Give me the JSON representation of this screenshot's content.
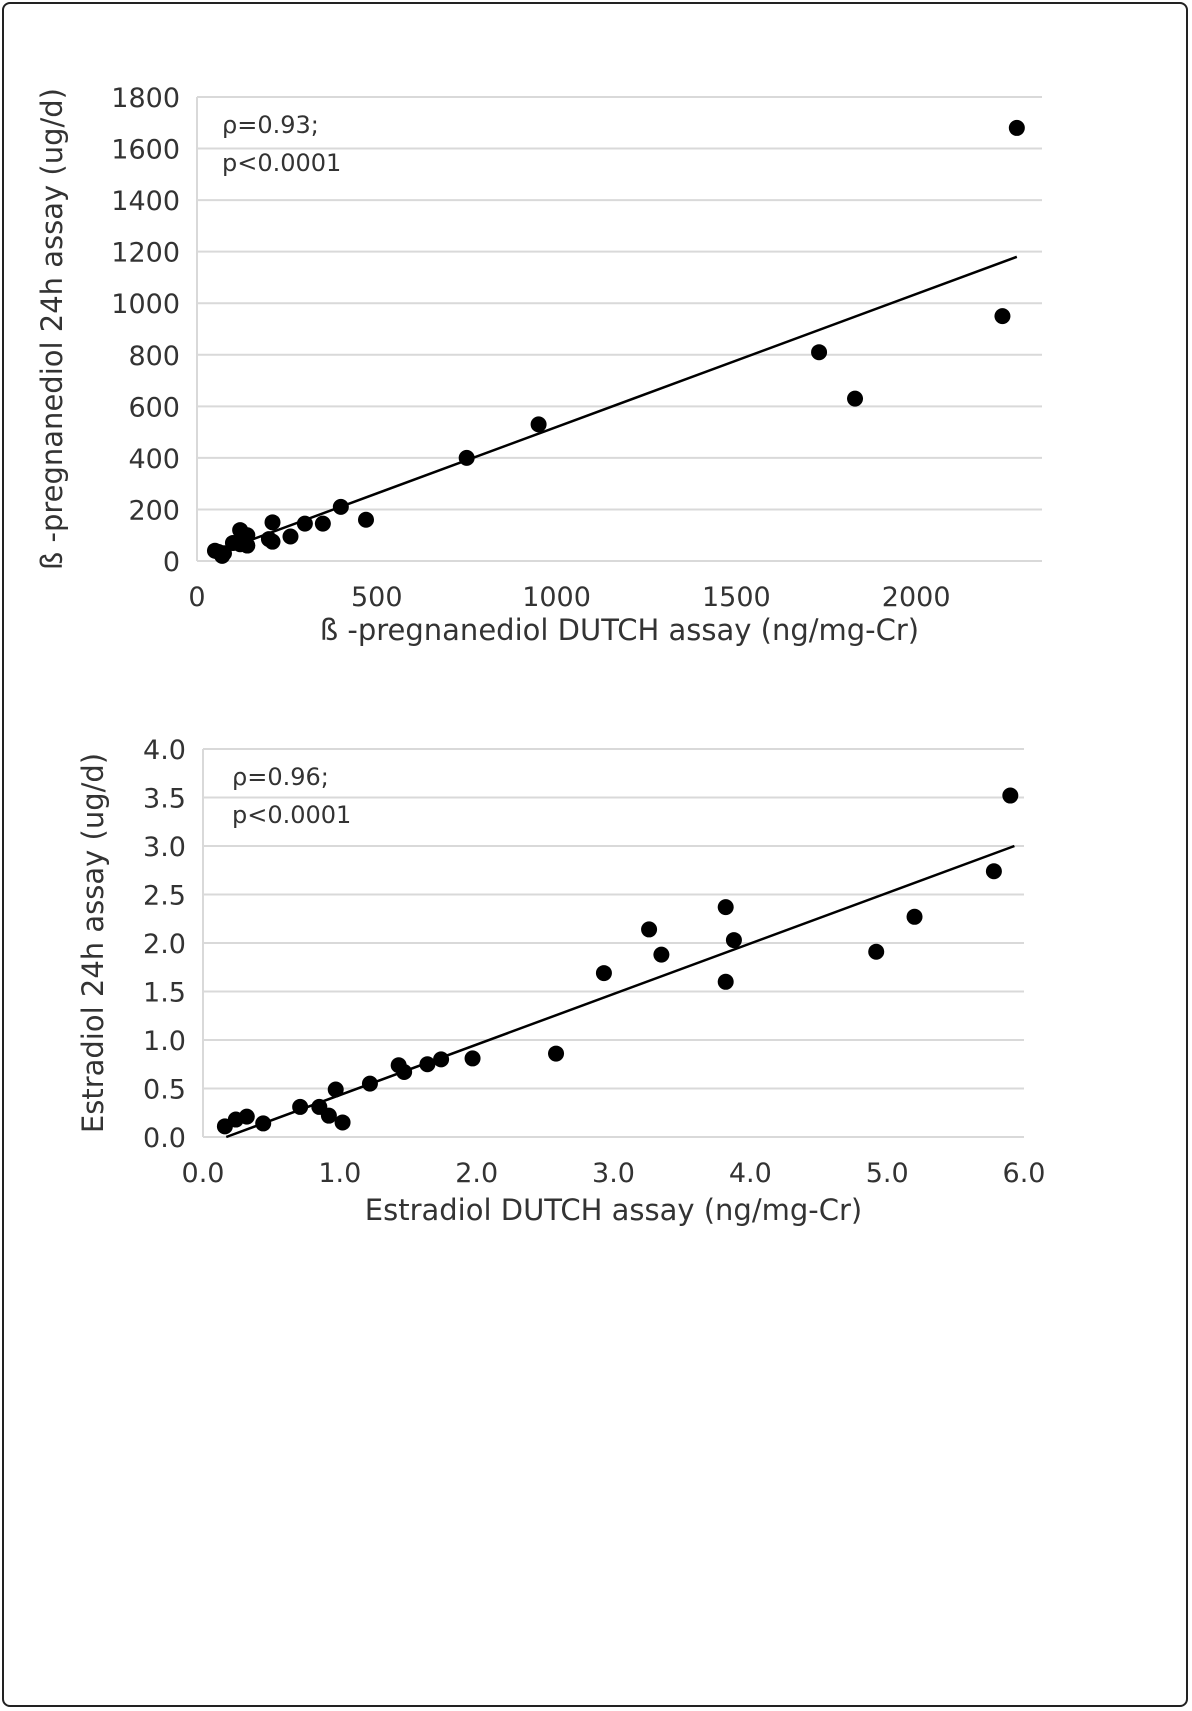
{
  "chart_data": [
    {
      "type": "scatter",
      "title": "",
      "xlabel": "ß -pregnanediol DUTCH assay (ng/mg-Cr)",
      "ylabel": "ß -pregnanediol 24h assay (ug/d)",
      "xlim": [
        0,
        2350
      ],
      "ylim": [
        0,
        1800
      ],
      "xticks": [
        0,
        500,
        1000,
        1500,
        2000
      ],
      "xtick_labels": [
        "0",
        "500",
        "1000",
        "1500",
        "2000"
      ],
      "yticks": [
        0,
        200,
        400,
        600,
        800,
        1000,
        1200,
        1400,
        1600,
        1800
      ],
      "ytick_labels": [
        "0",
        "200",
        "400",
        "600",
        "800",
        "1000",
        "1200",
        "1400",
        "1600",
        "1800"
      ],
      "grid": "horizontal",
      "annotation": [
        "ρ=0.93;",
        "p<0.0001"
      ],
      "points": [
        [
          2280,
          1680
        ],
        [
          2240,
          950
        ],
        [
          1730,
          810
        ],
        [
          1830,
          630
        ],
        [
          950,
          530
        ],
        [
          750,
          400
        ],
        [
          400,
          210
        ],
        [
          470,
          160
        ],
        [
          350,
          145
        ],
        [
          300,
          145
        ],
        [
          210,
          150
        ],
        [
          260,
          95
        ],
        [
          200,
          85
        ],
        [
          210,
          75
        ],
        [
          120,
          120
        ],
        [
          140,
          100
        ],
        [
          120,
          65
        ],
        [
          140,
          60
        ],
        [
          100,
          70
        ],
        [
          50,
          40
        ],
        [
          60,
          35
        ],
        [
          75,
          30
        ],
        [
          70,
          20
        ]
      ],
      "trendline": [
        [
          50,
          30
        ],
        [
          2280,
          1180
        ]
      ]
    },
    {
      "type": "scatter",
      "title": "",
      "xlabel": "Estradiol DUTCH assay (ng/mg-Cr)",
      "ylabel": "Estradiol 24h assay (ug/d)",
      "xlim": [
        0,
        6.0
      ],
      "ylim": [
        0,
        4.0
      ],
      "xticks": [
        0,
        1,
        2,
        3,
        4,
        5,
        6
      ],
      "xtick_labels": [
        "0.0",
        "1.0",
        "2.0",
        "3.0",
        "4.0",
        "5.0",
        "6.0"
      ],
      "yticks": [
        0,
        0.5,
        1,
        1.5,
        2,
        2.5,
        3,
        3.5,
        4
      ],
      "ytick_labels": [
        "0.0",
        "0.5",
        "1.0",
        "1.5",
        "2.0",
        "2.5",
        "3.0",
        "3.5",
        "4.0"
      ],
      "grid": "horizontal",
      "annotation": [
        "ρ=0.96;",
        "p<0.0001"
      ],
      "points": [
        [
          5.9,
          3.52
        ],
        [
          5.78,
          2.74
        ],
        [
          5.2,
          2.27
        ],
        [
          4.92,
          1.91
        ],
        [
          3.82,
          2.37
        ],
        [
          3.88,
          2.03
        ],
        [
          3.82,
          1.6
        ],
        [
          3.26,
          2.14
        ],
        [
          3.35,
          1.88
        ],
        [
          2.93,
          1.69
        ],
        [
          2.58,
          0.86
        ],
        [
          1.97,
          0.81
        ],
        [
          1.74,
          0.8
        ],
        [
          1.64,
          0.75
        ],
        [
          1.47,
          0.67
        ],
        [
          1.43,
          0.74
        ],
        [
          1.22,
          0.55
        ],
        [
          0.97,
          0.49
        ],
        [
          1.02,
          0.15
        ],
        [
          0.92,
          0.22
        ],
        [
          0.85,
          0.31
        ],
        [
          0.71,
          0.31
        ],
        [
          0.44,
          0.14
        ],
        [
          0.32,
          0.21
        ],
        [
          0.24,
          0.18
        ],
        [
          0.16,
          0.11
        ]
      ],
      "trendline": [
        [
          0.17,
          0
        ],
        [
          5.93,
          3.0
        ]
      ]
    }
  ]
}
